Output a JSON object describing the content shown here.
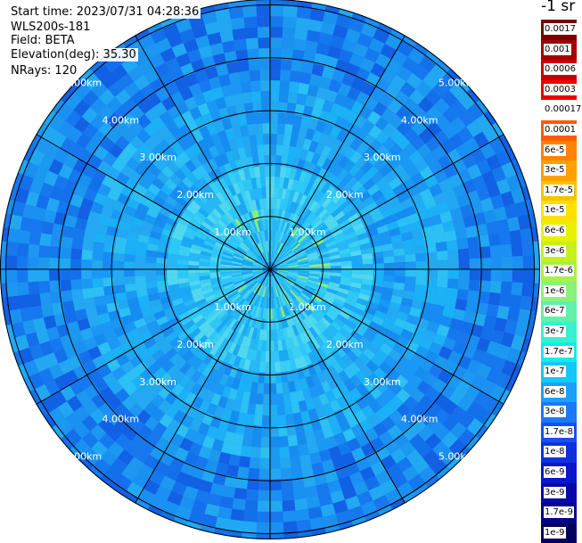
{
  "header": {
    "start_time": "Start time: 2023/07/31 04:28:36",
    "instrument": "WLS200s-181",
    "field": "Field: BETA",
    "elevation": "Elevation(deg): 35.30",
    "nrays": "NRays: 120"
  },
  "colorbar": {
    "unit": "-1 sr",
    "cells": [
      {
        "label": "0.0017",
        "color": "#7a0000"
      },
      {
        "label": "0.001",
        "color": "#a30000"
      },
      {
        "label": "0.0006",
        "color": "#c80000"
      },
      {
        "label": "0.0003",
        "color": "#ef0000"
      },
      {
        "label": "0.00017",
        "color": "#ffffff"
      },
      {
        "label": "0.0001",
        "color": "#ff5a00"
      },
      {
        "label": "6e-5",
        "color": "#ff8200"
      },
      {
        "label": "3e-5",
        "color": "#ffa000"
      },
      {
        "label": "1.7e-5",
        "color": "#ffc000"
      },
      {
        "label": "1e-5",
        "color": "#ffe000"
      },
      {
        "label": "6e-6",
        "color": "#e8f000"
      },
      {
        "label": "3e-6",
        "color": "#c6f01c"
      },
      {
        "label": "1.7e-6",
        "color": "#a8f048"
      },
      {
        "label": "1e-6",
        "color": "#8cf07a"
      },
      {
        "label": "6e-7",
        "color": "#60f0a8"
      },
      {
        "label": "3e-7",
        "color": "#38f0d0"
      },
      {
        "label": "1.7e-7",
        "color": "#18e8f0"
      },
      {
        "label": "1e-7",
        "color": "#14c8f8"
      },
      {
        "label": "6e-8",
        "color": "#1ca0f8"
      },
      {
        "label": "3e-8",
        "color": "#1c78f8"
      },
      {
        "label": "1.7e-8",
        "color": "#1850f0"
      },
      {
        "label": "1e-8",
        "color": "#1030e0"
      },
      {
        "label": "6e-9",
        "color": "#0818c8"
      },
      {
        "label": "3e-9",
        "color": "#0808a8"
      },
      {
        "label": "1.7e-9",
        "color": "#040488"
      },
      {
        "label": "1e-9",
        "color": "#02025c"
      }
    ]
  },
  "map": {
    "ray_count": 120,
    "range_rings": [
      {
        "label": "1.00km",
        "km": 1
      },
      {
        "label": "2.00km",
        "km": 2
      },
      {
        "label": "3.00km",
        "km": 3
      },
      {
        "label": "4.00km",
        "km": 4
      },
      {
        "label": "5.00km",
        "km": 5
      }
    ],
    "field_colors": {
      "near": [
        "#2ec8f8",
        "#3ad0f4",
        "#26b8f6",
        "#52d8ee",
        "#1ca8f4"
      ],
      "mid": [
        "#1cb0f6",
        "#1a98f4",
        "#24a8f2",
        "#168cf0",
        "#2cc0f4"
      ],
      "far": [
        "#1a90f2",
        "#1678ee",
        "#1c98f0",
        "#1470ea",
        "#22a8f2",
        "#1260e4"
      ]
    }
  }
}
